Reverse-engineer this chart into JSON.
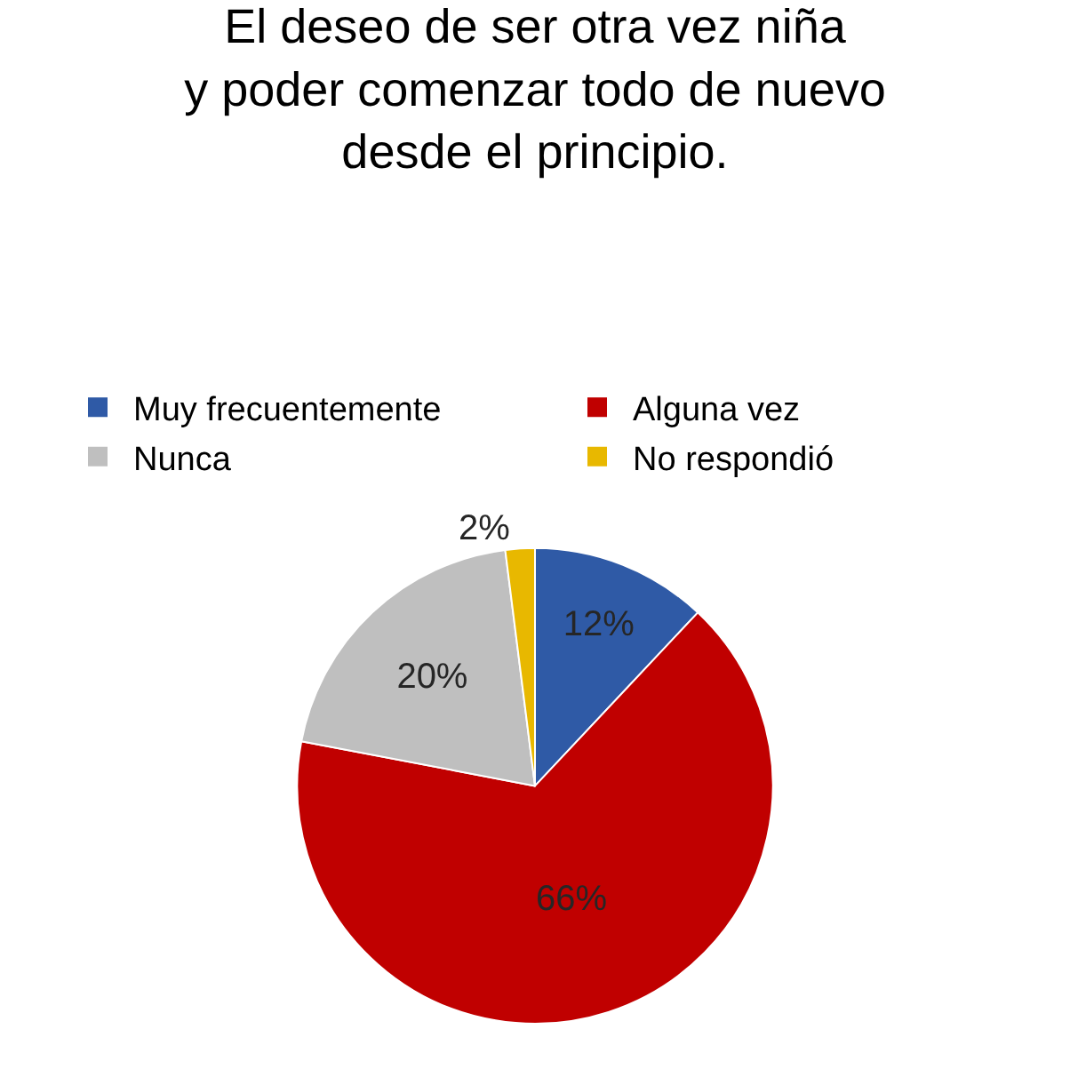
{
  "chart_data": {
    "type": "pie",
    "title": "El deseo de ser otra vez niña y poder comenzar todo de nuevo desde el principio.",
    "categories": [
      "Muy frecuentemente",
      "Alguna vez",
      "Nunca",
      "No respondió"
    ],
    "values": [
      12,
      66,
      20,
      2
    ],
    "colors": [
      "#2f5aa6",
      "#c00000",
      "#bfbfbf",
      "#e8b800"
    ],
    "value_labels": [
      "12%",
      "66%",
      "20%",
      "2%"
    ],
    "legend": "top"
  }
}
